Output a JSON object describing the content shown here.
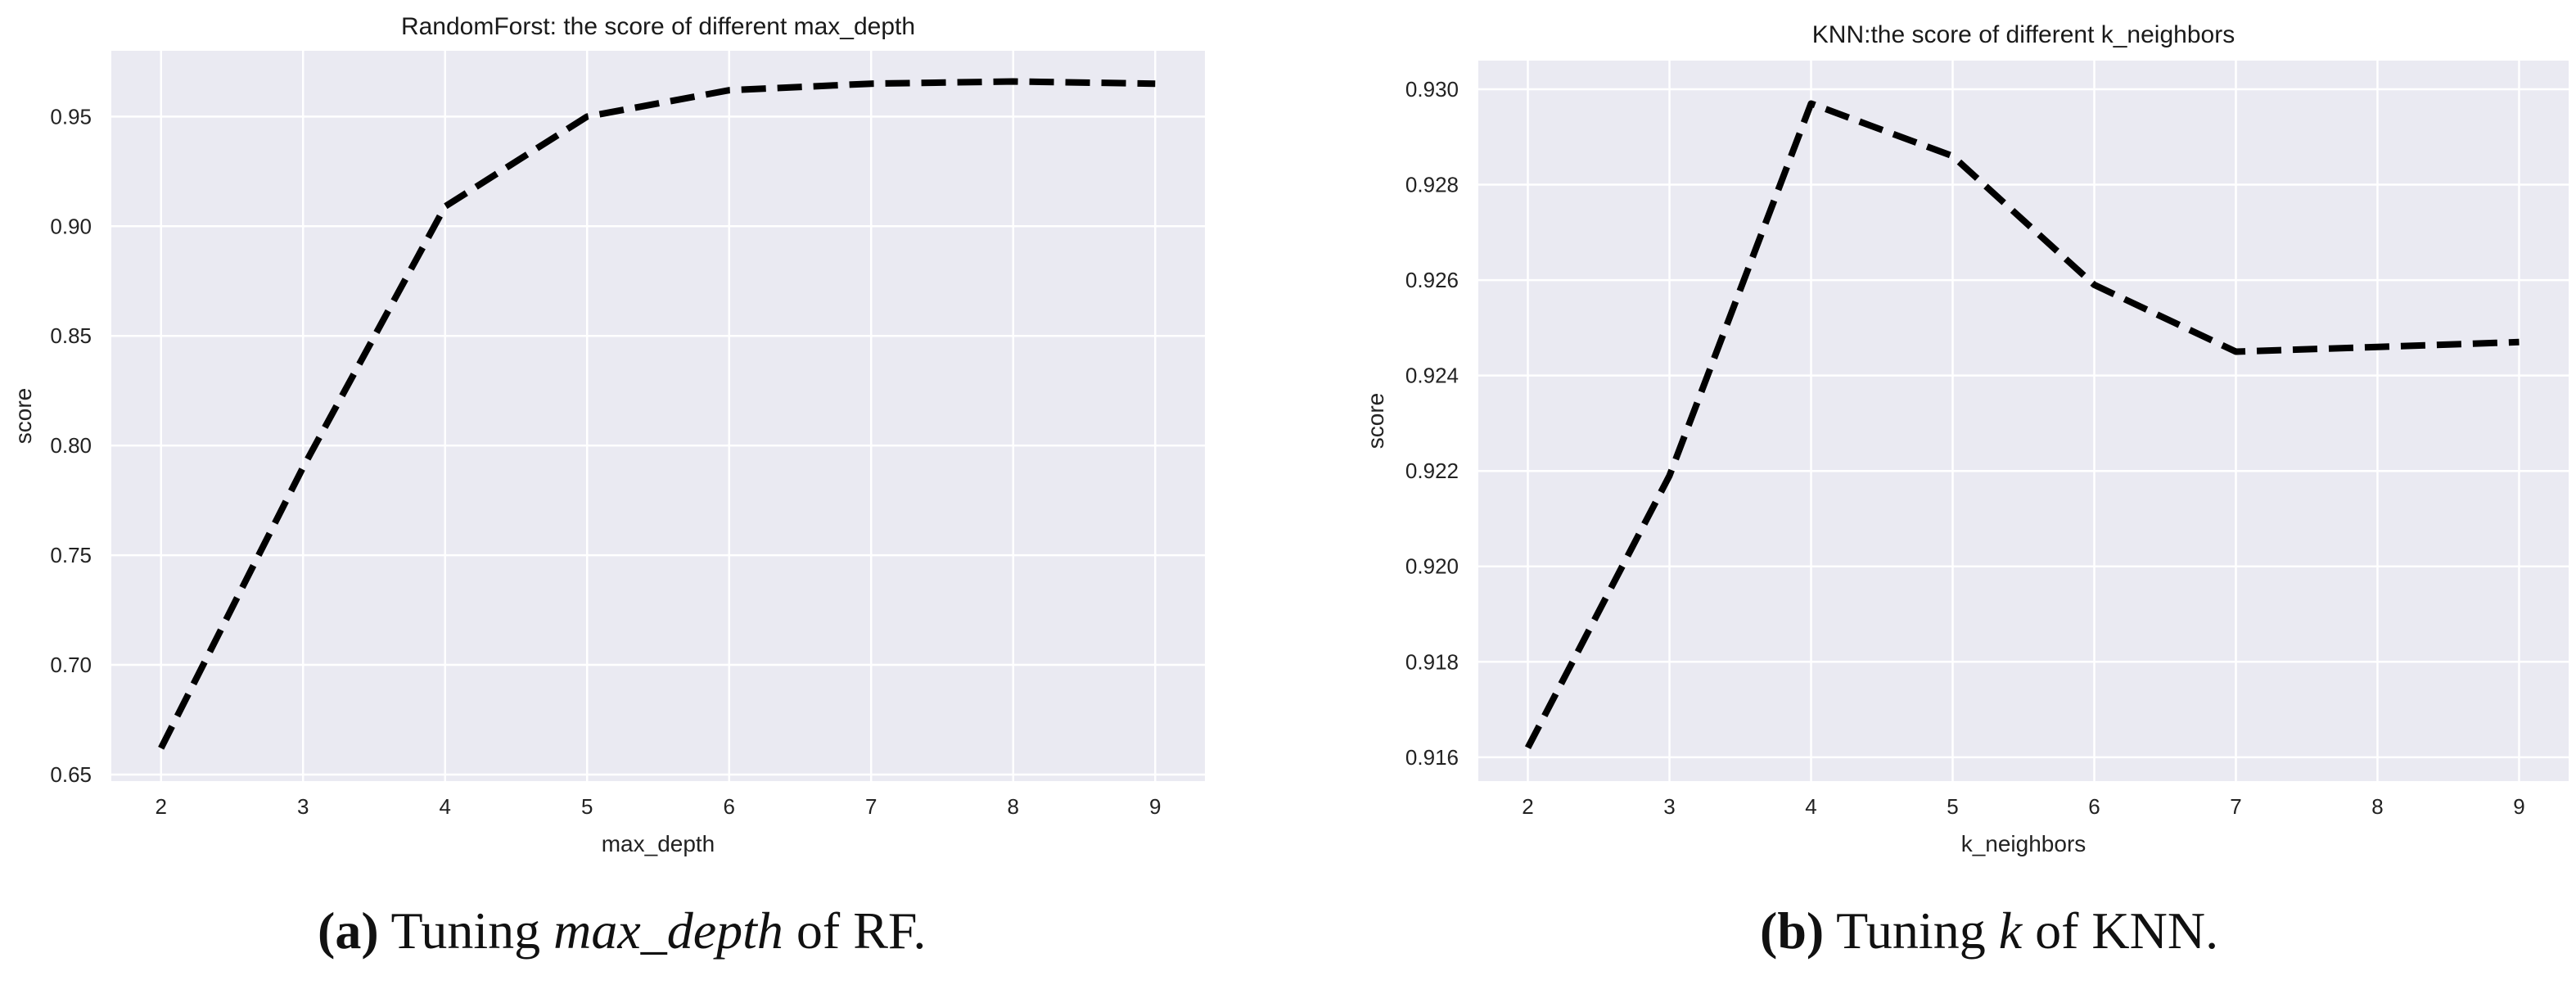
{
  "chart_data": [
    {
      "type": "line",
      "title": "RandomForst: the score of different max_depth",
      "xlabel": "max_depth",
      "ylabel": "score",
      "x": [
        2,
        3,
        4,
        5,
        6,
        7,
        8,
        9
      ],
      "series": [
        {
          "name": "score",
          "values": [
            0.662,
            0.79,
            0.909,
            0.95,
            0.962,
            0.965,
            0.966,
            0.965
          ],
          "style": "dashed",
          "color": "#000000"
        }
      ],
      "xticks": [
        "2",
        "3",
        "4",
        "5",
        "6",
        "7",
        "8",
        "9"
      ],
      "yticks": [
        0.65,
        0.7,
        0.75,
        0.8,
        0.85,
        0.9,
        0.95
      ],
      "ytick_labels": [
        "0.65",
        "0.70",
        "0.75",
        "0.80",
        "0.85",
        "0.90",
        "0.95"
      ],
      "xlim": [
        1.65,
        9.35
      ],
      "ylim": [
        0.647,
        0.98
      ],
      "grid": true,
      "background": "#eaeaf2"
    },
    {
      "type": "line",
      "title": "KNN:the score of different k_neighbors",
      "xlabel": "k_neighbors",
      "ylabel": "score",
      "x": [
        2,
        3,
        4,
        5,
        6,
        7,
        8,
        9
      ],
      "series": [
        {
          "name": "score",
          "values": [
            0.9162,
            0.9219,
            0.9297,
            0.9286,
            0.9259,
            0.9245,
            0.9246,
            0.9247
          ],
          "style": "dashed",
          "color": "#000000"
        }
      ],
      "xticks": [
        "2",
        "3",
        "4",
        "5",
        "6",
        "7",
        "8",
        "9"
      ],
      "yticks": [
        0.916,
        0.918,
        0.92,
        0.922,
        0.924,
        0.926,
        0.928,
        0.93
      ],
      "ytick_labels": [
        "0.916",
        "0.918",
        "0.920",
        "0.922",
        "0.924",
        "0.926",
        "0.928",
        "0.930"
      ],
      "xlim": [
        1.65,
        9.35
      ],
      "ylim": [
        0.9155,
        0.9306
      ],
      "grid": true,
      "background": "#eaeaf2"
    }
  ],
  "captions": [
    {
      "label": "(a)",
      "pre": " Tuning ",
      "italic": "max_depth",
      "post": " of RF."
    },
    {
      "label": "(b)",
      "pre": " Tuning ",
      "italic": "k",
      "post": " of KNN."
    }
  ]
}
